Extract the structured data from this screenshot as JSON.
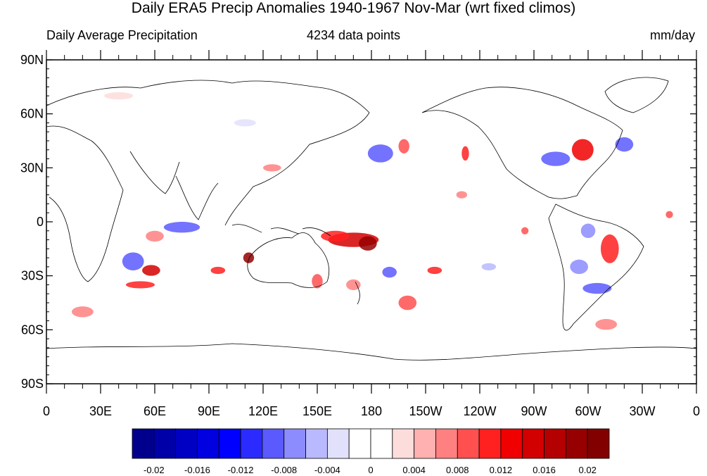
{
  "title": "Daily ERA5 Precip Anomalies 1940-1967 Nov-Mar (wrt fixed climos)",
  "subtitle_left": "Daily Average Precipitation",
  "subtitle_center": "4234 data points",
  "subtitle_right": "mm/day",
  "map": {
    "lat_ticks": [
      "90N",
      "60N",
      "30N",
      "0",
      "30S",
      "60S",
      "90S"
    ],
    "lon_ticks": [
      "0",
      "30E",
      "60E",
      "90E",
      "120E",
      "150E",
      "180",
      "150W",
      "120W",
      "90W",
      "60W",
      "30W",
      "0"
    ],
    "projection": "cylindrical equidistant, centered 180"
  },
  "colorbar": {
    "colors": [
      "#00008c",
      "#0000a8",
      "#0000c4",
      "#0000e0",
      "#0000ff",
      "#2b2bff",
      "#5a5aff",
      "#8c8cff",
      "#b9b9ff",
      "#e1e1fb",
      "#ffffff",
      "#ffffff",
      "#fddcdc",
      "#ffb0b0",
      "#ff8080",
      "#ff4f4f",
      "#ff2020",
      "#f00000",
      "#d20000",
      "#b40000",
      "#960000",
      "#820000"
    ],
    "labels": [
      "-0.02",
      "-0.016",
      "-0.012",
      "-0.008",
      "-0.004",
      "0",
      "0.004",
      "0.008",
      "0.012",
      "0.016",
      "0.02"
    ]
  },
  "anomalies": [
    {
      "lon": 170,
      "lat": -10,
      "rx": 14,
      "ry": 4,
      "color": "#d20000"
    },
    {
      "lon": 160,
      "lat": -8,
      "rx": 8,
      "ry": 3,
      "color": "#ff2020"
    },
    {
      "lon": 178,
      "lat": -12,
      "rx": 5,
      "ry": 4,
      "color": "#960000"
    },
    {
      "lon": 112,
      "lat": -20,
      "rx": 3,
      "ry": 3,
      "color": "#960000"
    },
    {
      "lon": 58,
      "lat": -27,
      "rx": 5,
      "ry": 3,
      "color": "#d20000"
    },
    {
      "lon": 52,
      "lat": -35,
      "rx": 8,
      "ry": 2,
      "color": "#ff2020"
    },
    {
      "lon": 95,
      "lat": -27,
      "rx": 4,
      "ry": 2,
      "color": "#ff2020"
    },
    {
      "lon": 75,
      "lat": -3,
      "rx": 10,
      "ry": 3,
      "color": "#5a5aff"
    },
    {
      "lon": 48,
      "lat": -22,
      "rx": 6,
      "ry": 5,
      "color": "#5a5aff"
    },
    {
      "lon": 185,
      "lat": 38,
      "rx": 7,
      "ry": 5,
      "color": "#5a5aff"
    },
    {
      "lon": 198,
      "lat": 42,
      "rx": 3,
      "ry": 4,
      "color": "#ff4f4f"
    },
    {
      "lon": 232,
      "lat": 38,
      "rx": 2,
      "ry": 4,
      "color": "#ff2020"
    },
    {
      "lon": 297,
      "lat": 40,
      "rx": 6,
      "ry": 6,
      "color": "#f00000"
    },
    {
      "lon": 282,
      "lat": 35,
      "rx": 8,
      "ry": 4,
      "color": "#5a5aff"
    },
    {
      "lon": 320,
      "lat": 43,
      "rx": 5,
      "ry": 4,
      "color": "#5a5aff"
    },
    {
      "lon": 312,
      "lat": -15,
      "rx": 5,
      "ry": 8,
      "color": "#ff2020"
    },
    {
      "lon": 300,
      "lat": -5,
      "rx": 4,
      "ry": 4,
      "color": "#8c8cff"
    },
    {
      "lon": 305,
      "lat": -37,
      "rx": 8,
      "ry": 3,
      "color": "#5a5aff"
    },
    {
      "lon": 295,
      "lat": -25,
      "rx": 5,
      "ry": 4,
      "color": "#8c8cff"
    },
    {
      "lon": 215,
      "lat": -27,
      "rx": 4,
      "ry": 2,
      "color": "#ff2020"
    },
    {
      "lon": 190,
      "lat": -28,
      "rx": 4,
      "ry": 3,
      "color": "#5a5aff"
    },
    {
      "lon": 200,
      "lat": -45,
      "rx": 5,
      "ry": 4,
      "color": "#ff4f4f"
    },
    {
      "lon": 170,
      "lat": -35,
      "rx": 4,
      "ry": 3,
      "color": "#ff8080"
    },
    {
      "lon": 150,
      "lat": -33,
      "rx": 3,
      "ry": 4,
      "color": "#ff4f4f"
    },
    {
      "lon": 20,
      "lat": -50,
      "rx": 6,
      "ry": 3,
      "color": "#ff8080"
    },
    {
      "lon": 125,
      "lat": 30,
      "rx": 5,
      "ry": 2,
      "color": "#ff8080"
    },
    {
      "lon": 310,
      "lat": -57,
      "rx": 6,
      "ry": 3,
      "color": "#ff8080"
    },
    {
      "lon": 345,
      "lat": 4,
      "rx": 2,
      "ry": 2,
      "color": "#ff4f4f"
    },
    {
      "lon": 60,
      "lat": -8,
      "rx": 5,
      "ry": 3,
      "color": "#ff8080"
    },
    {
      "lon": 110,
      "lat": 55,
      "rx": 6,
      "ry": 2,
      "color": "#e1e1fb"
    },
    {
      "lon": 40,
      "lat": 70,
      "rx": 8,
      "ry": 2,
      "color": "#fddcdc"
    },
    {
      "lon": 245,
      "lat": -25,
      "rx": 4,
      "ry": 2,
      "color": "#b9b9ff"
    },
    {
      "lon": 265,
      "lat": -5,
      "rx": 2,
      "ry": 2,
      "color": "#ff4f4f"
    },
    {
      "lon": 230,
      "lat": 15,
      "rx": 3,
      "ry": 2,
      "color": "#ff8080"
    }
  ]
}
